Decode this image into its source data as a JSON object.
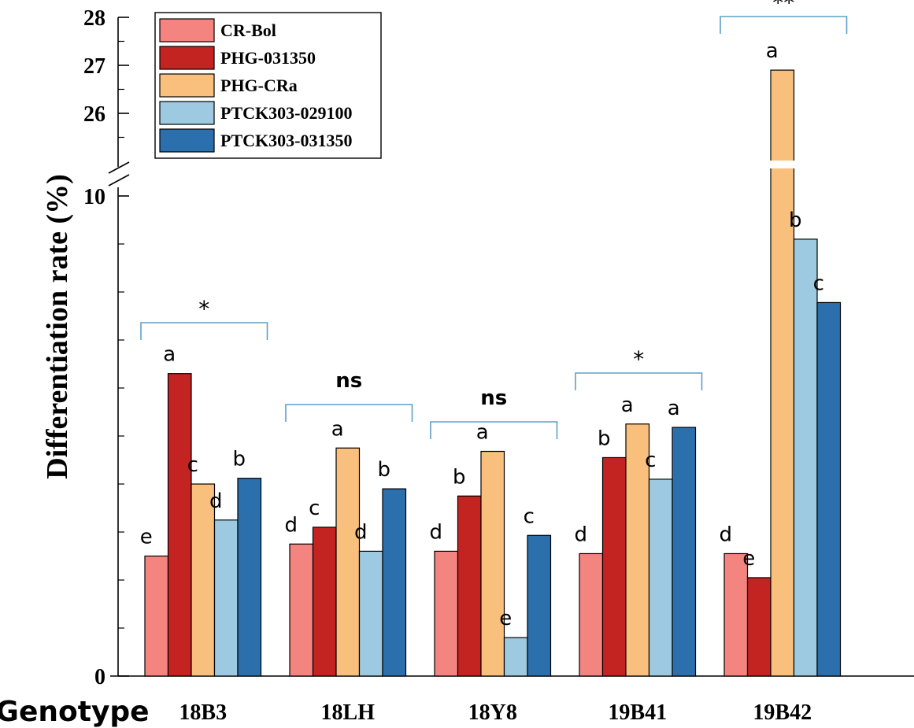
{
  "chart_data": {
    "type": "bar",
    "ylabel": "Differentiation rate (%)",
    "xlabel": "Genotype",
    "categories": [
      "18B3",
      "18LH",
      "18Y8",
      "19B41",
      "19B42"
    ],
    "ylim_lower": [
      0,
      10
    ],
    "ylim_upper": [
      25.5,
      28
    ],
    "yticks_lower": [
      "0",
      "10"
    ],
    "yticks_upper": [
      "26",
      "27",
      "28"
    ],
    "axis_break": true,
    "legend_position": "top-left",
    "series": [
      {
        "name": "CR-Bol",
        "color": "#f4847f",
        "values": [
          2.5,
          2.75,
          2.6,
          2.55,
          2.55
        ]
      },
      {
        "name": "PHG-031350",
        "color": "#c42421",
        "values": [
          6.3,
          3.1,
          3.75,
          4.55,
          2.05
        ]
      },
      {
        "name": "PHG-CRa",
        "color": "#f8c07c",
        "values": [
          4.0,
          4.75,
          4.68,
          5.25,
          26.9
        ]
      },
      {
        "name": "PTCK303-029100",
        "color": "#9ecae1",
        "values": [
          3.25,
          2.6,
          0.8,
          4.1,
          9.1
        ]
      },
      {
        "name": "PTCK303-031350",
        "color": "#2b6fad",
        "values": [
          4.12,
          3.9,
          2.93,
          5.18,
          7.78
        ]
      }
    ],
    "letters": [
      [
        "e",
        "a",
        "c",
        "d",
        "b"
      ],
      [
        "d",
        "c",
        "a",
        "d",
        "b"
      ],
      [
        "d",
        "b",
        "a",
        "e",
        "c"
      ],
      [
        "d",
        "b",
        "a",
        "c",
        "a"
      ],
      [
        "d",
        "e",
        "a",
        "b",
        "c"
      ]
    ],
    "significance": [
      "*",
      "ns",
      "ns",
      "*",
      "**"
    ],
    "axis_break_label": "//"
  }
}
